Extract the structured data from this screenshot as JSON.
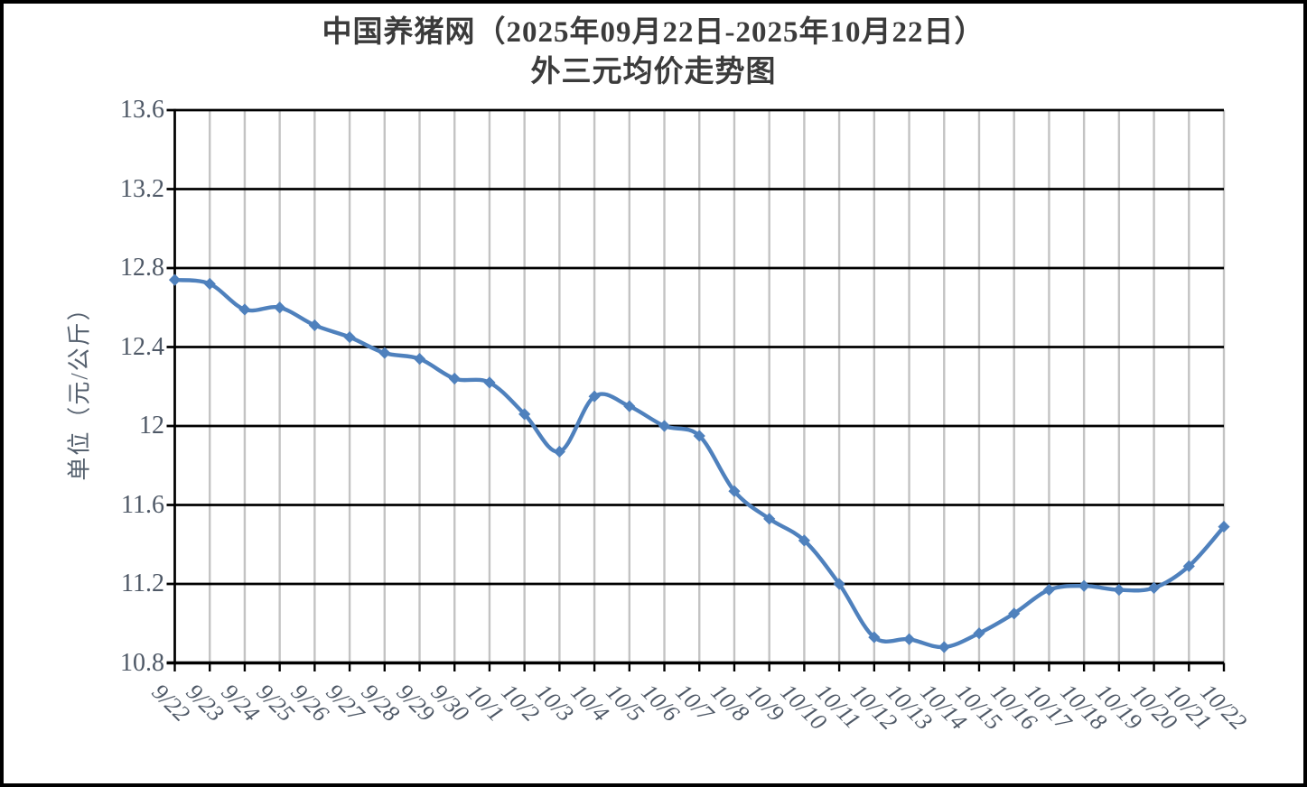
{
  "title": {
    "line1": "中国养猪网（2025年09月22日-2025年10月22日）",
    "line2": "外三元均价走势图"
  },
  "y_axis": {
    "title": "单位（元/公斤）",
    "ticks": [
      "13.6",
      "13.2",
      "12.8",
      "12.4",
      "12",
      "11.6",
      "11.2",
      "10.8"
    ]
  },
  "chart_data": {
    "type": "line",
    "title": "中国养猪网（2025年09月22日-2025年10月22日）外三元均价走势图",
    "ylabel": "单位（元/公斤）",
    "xlabel": "",
    "categories": [
      "9/22",
      "9/23",
      "9/24",
      "9/25",
      "9/26",
      "9/27",
      "9/28",
      "9/29",
      "9/30",
      "10/1",
      "10/2",
      "10/3",
      "10/4",
      "10/5",
      "10/6",
      "10/7",
      "10/8",
      "10/9",
      "10/10",
      "10/11",
      "10/12",
      "10/13",
      "10/14",
      "10/15",
      "10/16",
      "10/17",
      "10/18",
      "10/19",
      "10/20",
      "10/21",
      "10/22"
    ],
    "values": [
      12.74,
      12.72,
      12.59,
      12.6,
      12.51,
      12.45,
      12.37,
      12.34,
      12.24,
      12.22,
      12.06,
      11.87,
      12.15,
      12.1,
      12.0,
      11.95,
      11.67,
      11.53,
      11.42,
      11.2,
      10.93,
      10.92,
      10.88,
      10.95,
      11.05,
      11.17,
      11.19,
      11.17,
      11.18,
      11.29,
      11.49
    ],
    "ylim": [
      10.8,
      13.6
    ],
    "y_tick_step": 0.4,
    "grid": {
      "horizontal": true,
      "vertical": true
    },
    "legend": "none",
    "line_smoothing": true,
    "marker": "diamond",
    "colors": {
      "line": "#4f81bd",
      "marker": "#4f81bd",
      "horizontal_grid": "#000000",
      "vertical_grid": "#c3c3c3",
      "axis": "#000000",
      "tick_label": "#4e5866",
      "axis_title": "#55606e",
      "title_text": "#3b3b3b",
      "background": "#ffffff",
      "border": "#000000"
    }
  }
}
